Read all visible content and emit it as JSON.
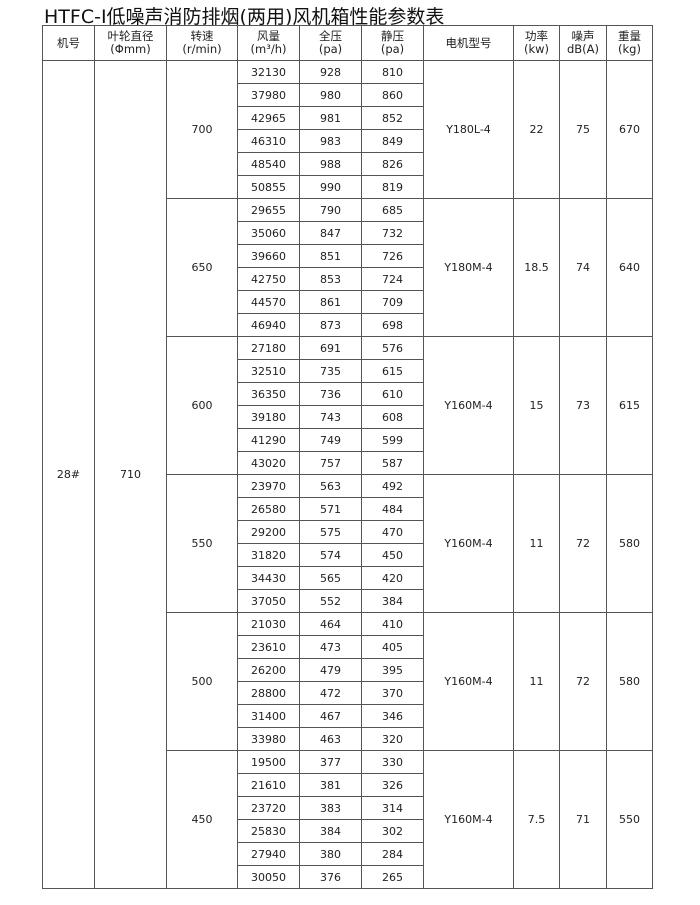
{
  "title": "HTFC-Ⅰ低噪声消防排烟(两用)风机箱性能参数表",
  "headers": [
    {
      "l1": "机号",
      "l2": ""
    },
    {
      "l1": "叶轮直径",
      "l2": "(Φmm)"
    },
    {
      "l1": "转速",
      "l2": "(r/min)"
    },
    {
      "l1": "风量",
      "l2": "(m³/h)"
    },
    {
      "l1": "全压",
      "l2": "(pa)"
    },
    {
      "l1": "静压",
      "l2": "(pa)"
    },
    {
      "l1": "电机型号",
      "l2": ""
    },
    {
      "l1": "功率",
      "l2": "(kw)"
    },
    {
      "l1": "噪声",
      "l2": "dB(A)"
    },
    {
      "l1": "重量",
      "l2": "(kg)"
    }
  ],
  "machine_no": "28#",
  "impeller_diameter": "710",
  "groups": [
    {
      "speed": "700",
      "motor": "Y180L-4",
      "power": "22",
      "noise": "75",
      "weight": "670",
      "rows": [
        [
          "32130",
          "928",
          "810"
        ],
        [
          "37980",
          "980",
          "860"
        ],
        [
          "42965",
          "981",
          "852"
        ],
        [
          "46310",
          "983",
          "849"
        ],
        [
          "48540",
          "988",
          "826"
        ],
        [
          "50855",
          "990",
          "819"
        ]
      ]
    },
    {
      "speed": "650",
      "motor": "Y180M-4",
      "power": "18.5",
      "noise": "74",
      "weight": "640",
      "rows": [
        [
          "29655",
          "790",
          "685"
        ],
        [
          "35060",
          "847",
          "732"
        ],
        [
          "39660",
          "851",
          "726"
        ],
        [
          "42750",
          "853",
          "724"
        ],
        [
          "44570",
          "861",
          "709"
        ],
        [
          "46940",
          "873",
          "698"
        ]
      ]
    },
    {
      "speed": "600",
      "motor": "Y160M-4",
      "power": "15",
      "noise": "73",
      "weight": "615",
      "rows": [
        [
          "27180",
          "691",
          "576"
        ],
        [
          "32510",
          "735",
          "615"
        ],
        [
          "36350",
          "736",
          "610"
        ],
        [
          "39180",
          "743",
          "608"
        ],
        [
          "41290",
          "749",
          "599"
        ],
        [
          "43020",
          "757",
          "587"
        ]
      ]
    },
    {
      "speed": "550",
      "motor": "Y160M-4",
      "power": "11",
      "noise": "72",
      "weight": "580",
      "rows": [
        [
          "23970",
          "563",
          "492"
        ],
        [
          "26580",
          "571",
          "484"
        ],
        [
          "29200",
          "575",
          "470"
        ],
        [
          "31820",
          "574",
          "450"
        ],
        [
          "34430",
          "565",
          "420"
        ],
        [
          "37050",
          "552",
          "384"
        ]
      ]
    },
    {
      "speed": "500",
      "motor": "Y160M-4",
      "power": "11",
      "noise": "72",
      "weight": "580",
      "rows": [
        [
          "21030",
          "464",
          "410"
        ],
        [
          "23610",
          "473",
          "405"
        ],
        [
          "26200",
          "479",
          "395"
        ],
        [
          "28800",
          "472",
          "370"
        ],
        [
          "31400",
          "467",
          "346"
        ],
        [
          "33980",
          "463",
          "320"
        ]
      ]
    },
    {
      "speed": "450",
      "motor": "Y160M-4",
      "power": "7.5",
      "noise": "71",
      "weight": "550",
      "rows": [
        [
          "19500",
          "377",
          "330"
        ],
        [
          "21610",
          "381",
          "326"
        ],
        [
          "23720",
          "383",
          "314"
        ],
        [
          "25830",
          "384",
          "302"
        ],
        [
          "27940",
          "380",
          "284"
        ],
        [
          "30050",
          "376",
          "265"
        ]
      ]
    }
  ]
}
